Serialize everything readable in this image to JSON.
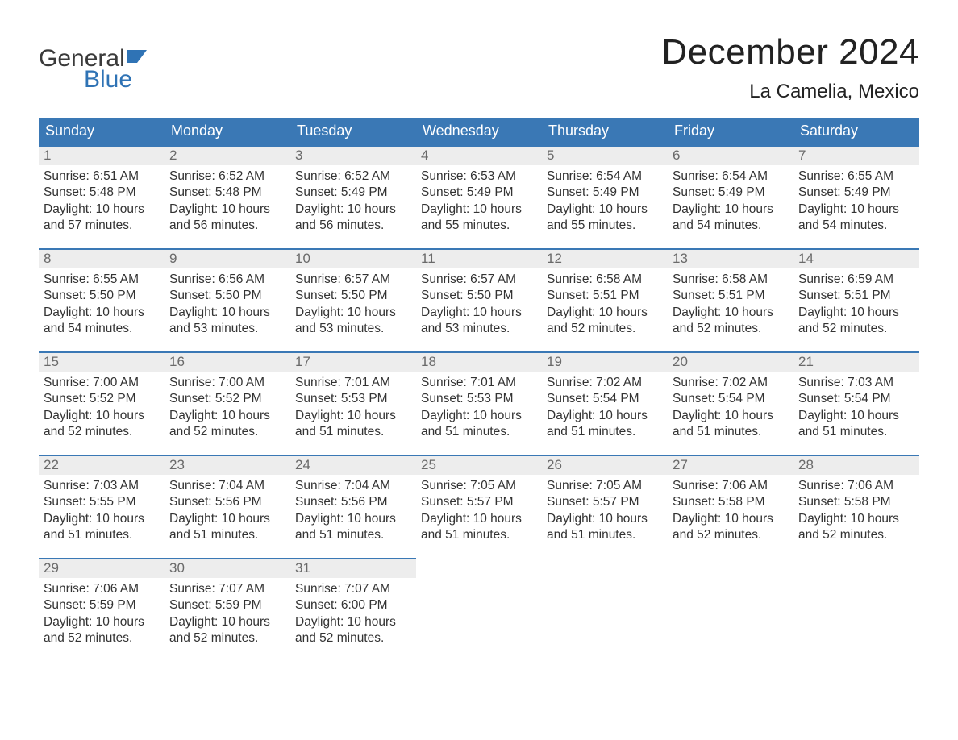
{
  "brand": {
    "line1": "General",
    "line2": "Blue",
    "accent_color": "#2f73b5",
    "text_color": "#3a3a3a"
  },
  "title": {
    "month_year": "December 2024",
    "location": "La Camelia, Mexico",
    "title_fontsize": 44,
    "location_fontsize": 24,
    "color": "#222222"
  },
  "calendar": {
    "type": "table",
    "header_bg": "#3a78b5",
    "header_text_color": "#ffffff",
    "daynum_bg": "#ededed",
    "daynum_border_color": "#3a78b5",
    "daynum_text_color": "#6a6a6a",
    "body_text_color": "#333333",
    "background_color": "#ffffff",
    "body_fontsize": 15.5,
    "header_fontsize": 18,
    "weekdays": [
      "Sunday",
      "Monday",
      "Tuesday",
      "Wednesday",
      "Thursday",
      "Friday",
      "Saturday"
    ],
    "weeks": [
      [
        {
          "day": "1",
          "sunrise": "Sunrise: 6:51 AM",
          "sunset": "Sunset: 5:48 PM",
          "daylight1": "Daylight: 10 hours",
          "daylight2": "and 57 minutes."
        },
        {
          "day": "2",
          "sunrise": "Sunrise: 6:52 AM",
          "sunset": "Sunset: 5:48 PM",
          "daylight1": "Daylight: 10 hours",
          "daylight2": "and 56 minutes."
        },
        {
          "day": "3",
          "sunrise": "Sunrise: 6:52 AM",
          "sunset": "Sunset: 5:49 PM",
          "daylight1": "Daylight: 10 hours",
          "daylight2": "and 56 minutes."
        },
        {
          "day": "4",
          "sunrise": "Sunrise: 6:53 AM",
          "sunset": "Sunset: 5:49 PM",
          "daylight1": "Daylight: 10 hours",
          "daylight2": "and 55 minutes."
        },
        {
          "day": "5",
          "sunrise": "Sunrise: 6:54 AM",
          "sunset": "Sunset: 5:49 PM",
          "daylight1": "Daylight: 10 hours",
          "daylight2": "and 55 minutes."
        },
        {
          "day": "6",
          "sunrise": "Sunrise: 6:54 AM",
          "sunset": "Sunset: 5:49 PM",
          "daylight1": "Daylight: 10 hours",
          "daylight2": "and 54 minutes."
        },
        {
          "day": "7",
          "sunrise": "Sunrise: 6:55 AM",
          "sunset": "Sunset: 5:49 PM",
          "daylight1": "Daylight: 10 hours",
          "daylight2": "and 54 minutes."
        }
      ],
      [
        {
          "day": "8",
          "sunrise": "Sunrise: 6:55 AM",
          "sunset": "Sunset: 5:50 PM",
          "daylight1": "Daylight: 10 hours",
          "daylight2": "and 54 minutes."
        },
        {
          "day": "9",
          "sunrise": "Sunrise: 6:56 AM",
          "sunset": "Sunset: 5:50 PM",
          "daylight1": "Daylight: 10 hours",
          "daylight2": "and 53 minutes."
        },
        {
          "day": "10",
          "sunrise": "Sunrise: 6:57 AM",
          "sunset": "Sunset: 5:50 PM",
          "daylight1": "Daylight: 10 hours",
          "daylight2": "and 53 minutes."
        },
        {
          "day": "11",
          "sunrise": "Sunrise: 6:57 AM",
          "sunset": "Sunset: 5:50 PM",
          "daylight1": "Daylight: 10 hours",
          "daylight2": "and 53 minutes."
        },
        {
          "day": "12",
          "sunrise": "Sunrise: 6:58 AM",
          "sunset": "Sunset: 5:51 PM",
          "daylight1": "Daylight: 10 hours",
          "daylight2": "and 52 minutes."
        },
        {
          "day": "13",
          "sunrise": "Sunrise: 6:58 AM",
          "sunset": "Sunset: 5:51 PM",
          "daylight1": "Daylight: 10 hours",
          "daylight2": "and 52 minutes."
        },
        {
          "day": "14",
          "sunrise": "Sunrise: 6:59 AM",
          "sunset": "Sunset: 5:51 PM",
          "daylight1": "Daylight: 10 hours",
          "daylight2": "and 52 minutes."
        }
      ],
      [
        {
          "day": "15",
          "sunrise": "Sunrise: 7:00 AM",
          "sunset": "Sunset: 5:52 PM",
          "daylight1": "Daylight: 10 hours",
          "daylight2": "and 52 minutes."
        },
        {
          "day": "16",
          "sunrise": "Sunrise: 7:00 AM",
          "sunset": "Sunset: 5:52 PM",
          "daylight1": "Daylight: 10 hours",
          "daylight2": "and 52 minutes."
        },
        {
          "day": "17",
          "sunrise": "Sunrise: 7:01 AM",
          "sunset": "Sunset: 5:53 PM",
          "daylight1": "Daylight: 10 hours",
          "daylight2": "and 51 minutes."
        },
        {
          "day": "18",
          "sunrise": "Sunrise: 7:01 AM",
          "sunset": "Sunset: 5:53 PM",
          "daylight1": "Daylight: 10 hours",
          "daylight2": "and 51 minutes."
        },
        {
          "day": "19",
          "sunrise": "Sunrise: 7:02 AM",
          "sunset": "Sunset: 5:54 PM",
          "daylight1": "Daylight: 10 hours",
          "daylight2": "and 51 minutes."
        },
        {
          "day": "20",
          "sunrise": "Sunrise: 7:02 AM",
          "sunset": "Sunset: 5:54 PM",
          "daylight1": "Daylight: 10 hours",
          "daylight2": "and 51 minutes."
        },
        {
          "day": "21",
          "sunrise": "Sunrise: 7:03 AM",
          "sunset": "Sunset: 5:54 PM",
          "daylight1": "Daylight: 10 hours",
          "daylight2": "and 51 minutes."
        }
      ],
      [
        {
          "day": "22",
          "sunrise": "Sunrise: 7:03 AM",
          "sunset": "Sunset: 5:55 PM",
          "daylight1": "Daylight: 10 hours",
          "daylight2": "and 51 minutes."
        },
        {
          "day": "23",
          "sunrise": "Sunrise: 7:04 AM",
          "sunset": "Sunset: 5:56 PM",
          "daylight1": "Daylight: 10 hours",
          "daylight2": "and 51 minutes."
        },
        {
          "day": "24",
          "sunrise": "Sunrise: 7:04 AM",
          "sunset": "Sunset: 5:56 PM",
          "daylight1": "Daylight: 10 hours",
          "daylight2": "and 51 minutes."
        },
        {
          "day": "25",
          "sunrise": "Sunrise: 7:05 AM",
          "sunset": "Sunset: 5:57 PM",
          "daylight1": "Daylight: 10 hours",
          "daylight2": "and 51 minutes."
        },
        {
          "day": "26",
          "sunrise": "Sunrise: 7:05 AM",
          "sunset": "Sunset: 5:57 PM",
          "daylight1": "Daylight: 10 hours",
          "daylight2": "and 51 minutes."
        },
        {
          "day": "27",
          "sunrise": "Sunrise: 7:06 AM",
          "sunset": "Sunset: 5:58 PM",
          "daylight1": "Daylight: 10 hours",
          "daylight2": "and 52 minutes."
        },
        {
          "day": "28",
          "sunrise": "Sunrise: 7:06 AM",
          "sunset": "Sunset: 5:58 PM",
          "daylight1": "Daylight: 10 hours",
          "daylight2": "and 52 minutes."
        }
      ],
      [
        {
          "day": "29",
          "sunrise": "Sunrise: 7:06 AM",
          "sunset": "Sunset: 5:59 PM",
          "daylight1": "Daylight: 10 hours",
          "daylight2": "and 52 minutes."
        },
        {
          "day": "30",
          "sunrise": "Sunrise: 7:07 AM",
          "sunset": "Sunset: 5:59 PM",
          "daylight1": "Daylight: 10 hours",
          "daylight2": "and 52 minutes."
        },
        {
          "day": "31",
          "sunrise": "Sunrise: 7:07 AM",
          "sunset": "Sunset: 6:00 PM",
          "daylight1": "Daylight: 10 hours",
          "daylight2": "and 52 minutes."
        },
        {
          "empty": true
        },
        {
          "empty": true
        },
        {
          "empty": true
        },
        {
          "empty": true
        }
      ]
    ]
  }
}
